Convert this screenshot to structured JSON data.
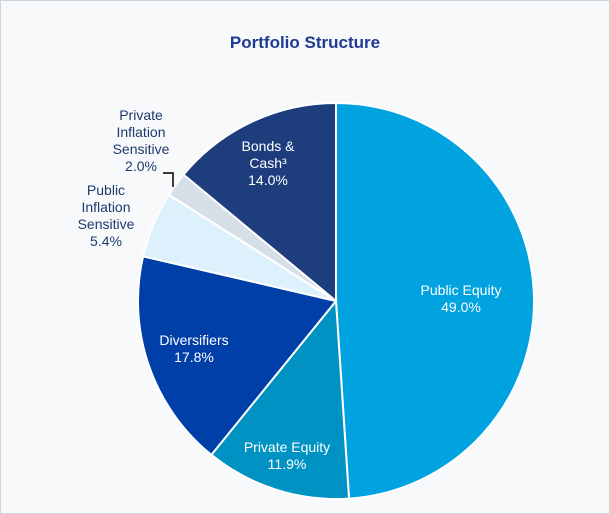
{
  "chart_data": {
    "type": "pie",
    "title": "Portfolio Structure",
    "categories": [
      "Public Equity",
      "Private Equity",
      "Diversifiers",
      "Public Inflation Sensitive",
      "Private Inflation Sensitive",
      "Bonds & Cash³"
    ],
    "values": [
      49.0,
      11.9,
      17.8,
      5.4,
      2.0,
      14.0
    ],
    "value_labels": [
      "49.0%",
      "11.9%",
      "17.8%",
      "5.4%",
      "2.0%",
      "14.0%"
    ],
    "colors": [
      "#00a3e0",
      "#0092c2",
      "#003fa8",
      "#ddf1fc",
      "#d6dee8",
      "#1e3d7d"
    ]
  }
}
